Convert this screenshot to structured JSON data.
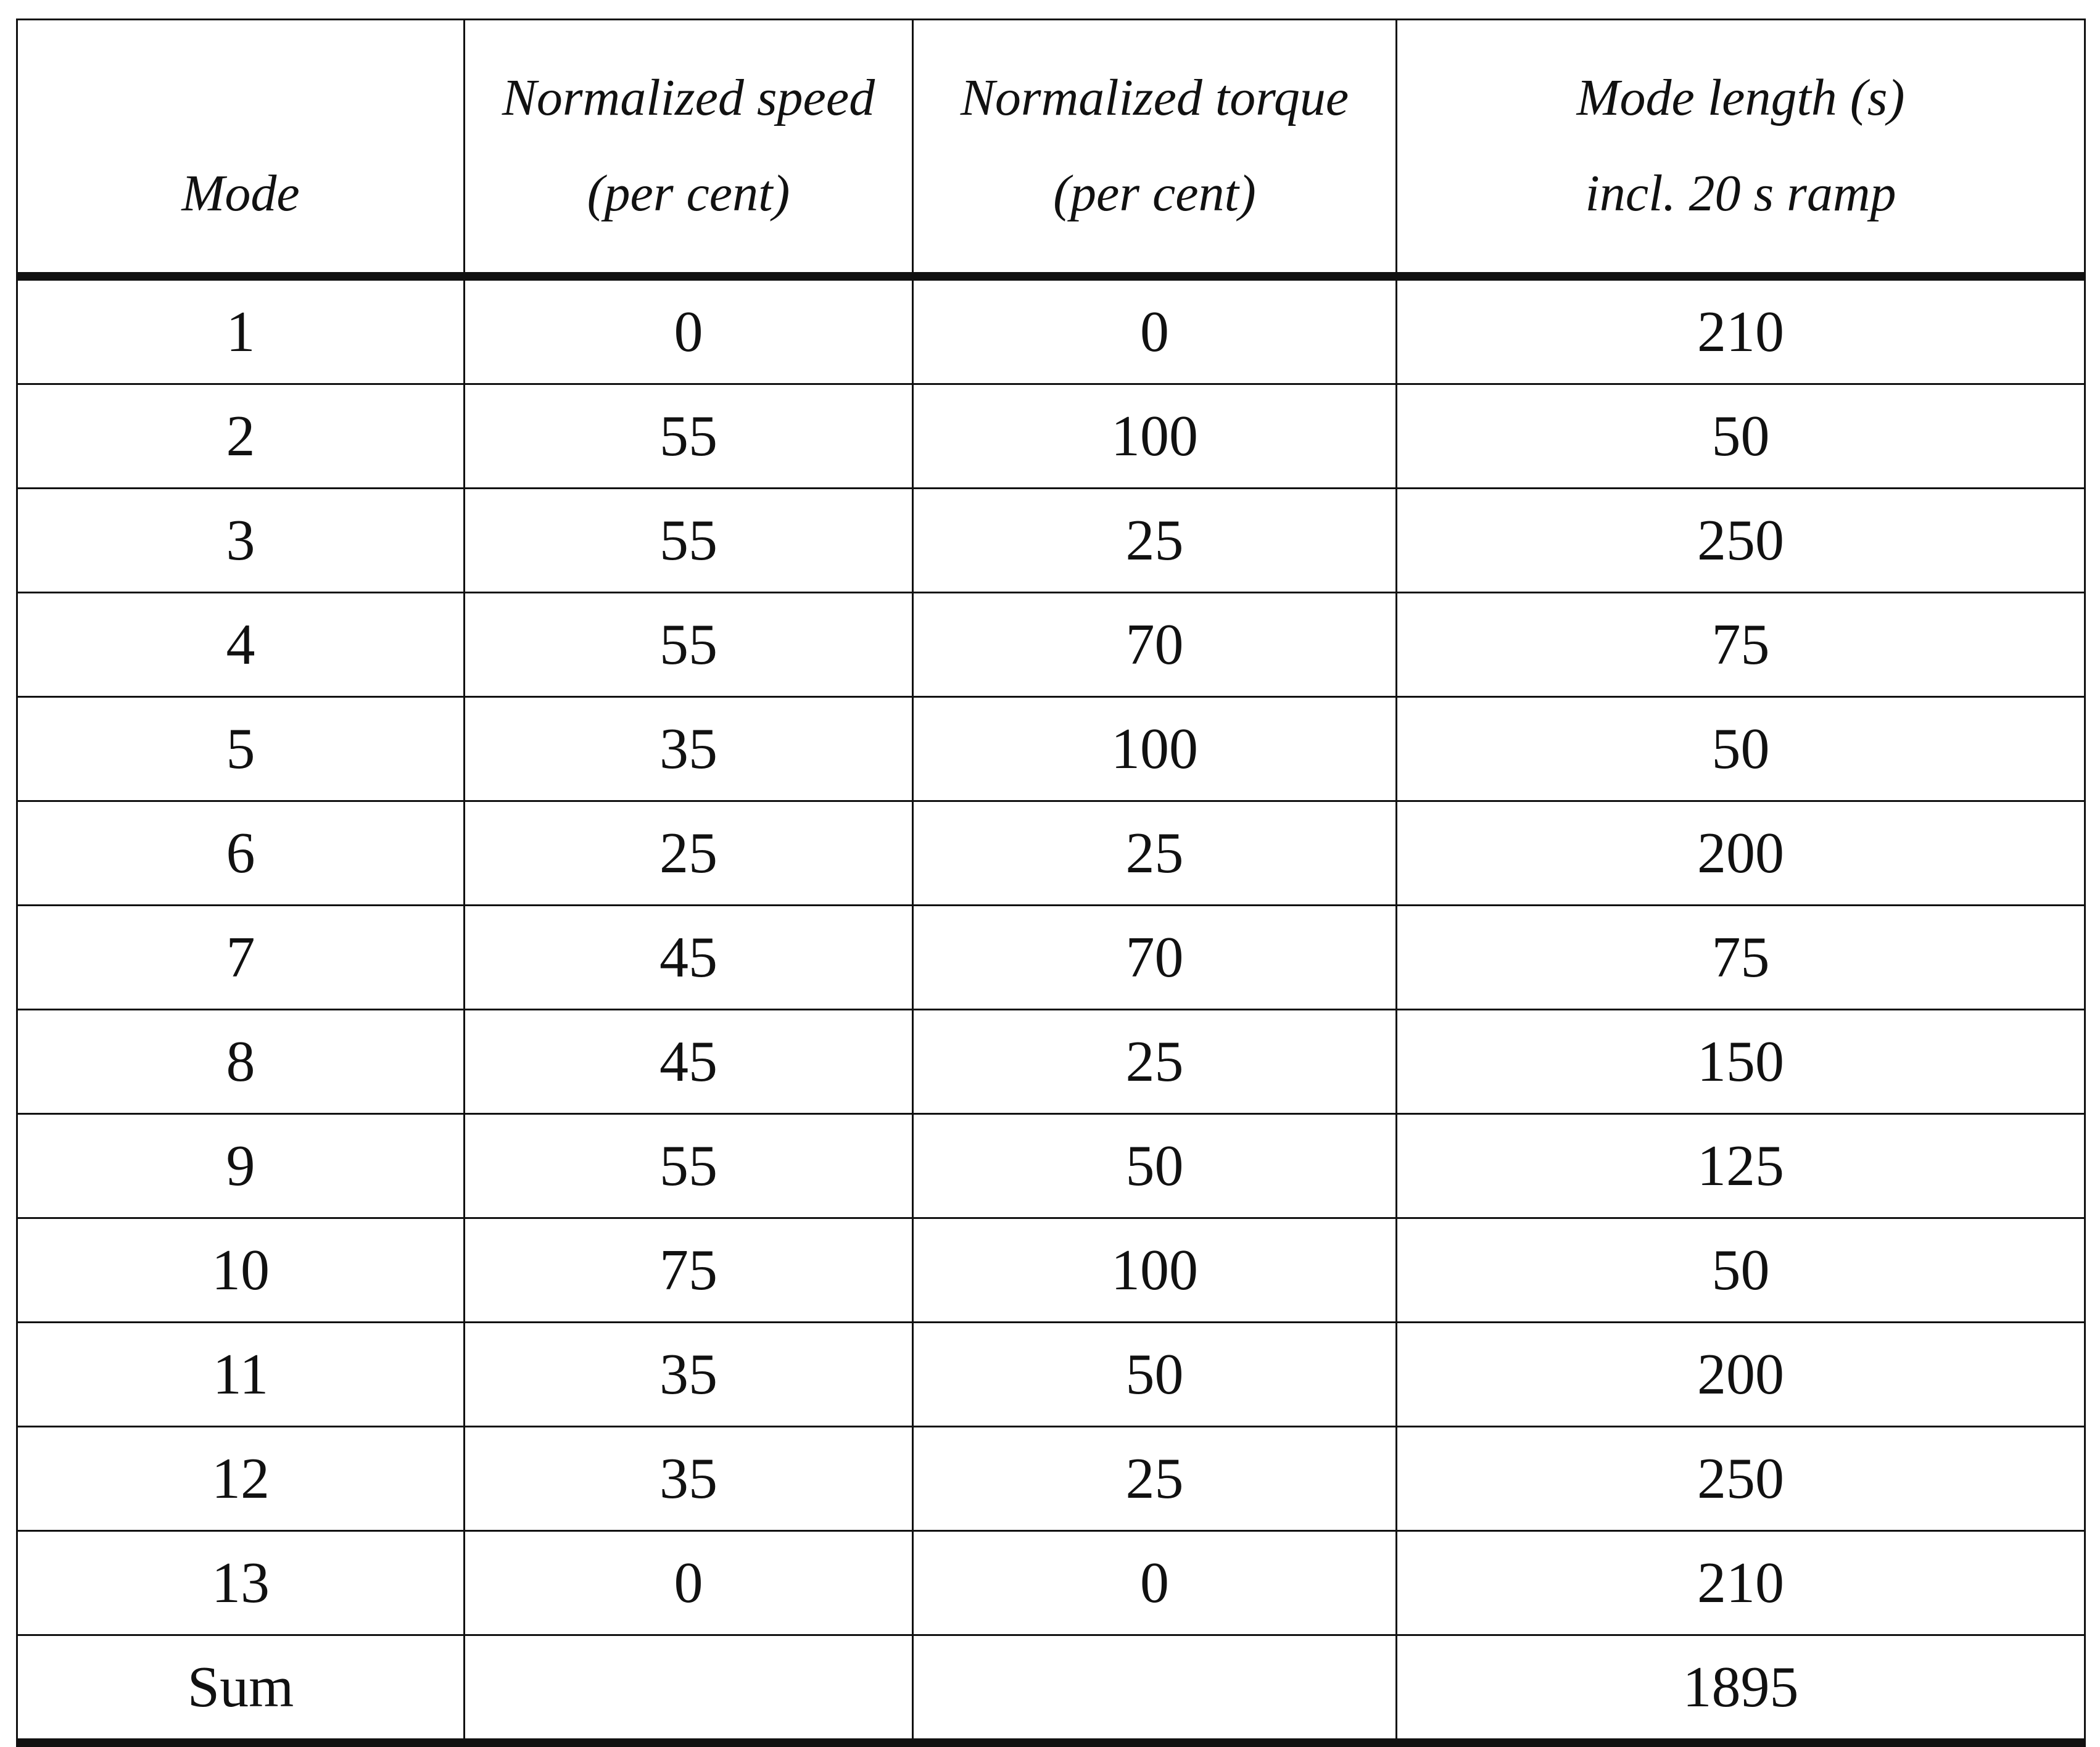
{
  "table": {
    "header": [
      [
        "Mode"
      ],
      [
        "Normalized speed",
        "(per cent)"
      ],
      [
        "Normalized torque",
        "(per cent)"
      ],
      [
        "Mode length (s)",
        "incl. 20 s ramp"
      ]
    ],
    "rows": [
      [
        1,
        0,
        0,
        210
      ],
      [
        2,
        55,
        100,
        50
      ],
      [
        3,
        55,
        25,
        250
      ],
      [
        4,
        55,
        70,
        75
      ],
      [
        5,
        35,
        100,
        50
      ],
      [
        6,
        25,
        25,
        200
      ],
      [
        7,
        45,
        70,
        75
      ],
      [
        8,
        45,
        25,
        150
      ],
      [
        9,
        55,
        50,
        125
      ],
      [
        10,
        75,
        100,
        50
      ],
      [
        11,
        35,
        50,
        200
      ],
      [
        12,
        35,
        25,
        250
      ],
      [
        13,
        0,
        0,
        210
      ]
    ],
    "sum": {
      "label": "Sum",
      "mode_length": 1895
    }
  }
}
